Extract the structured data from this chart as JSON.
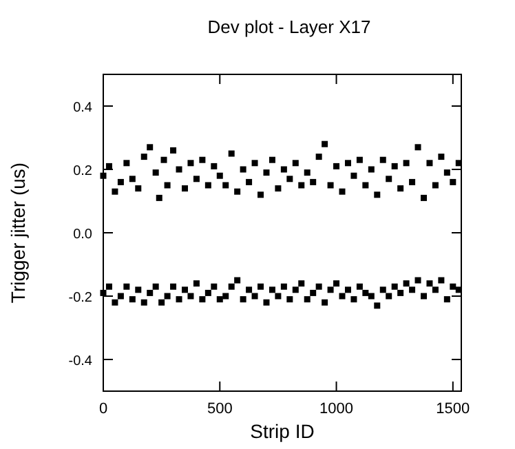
{
  "chart_data": {
    "type": "scatter",
    "title": "Dev plot - Layer X17",
    "xlabel": "Strip ID",
    "ylabel": "Trigger jitter (us)",
    "xlim": [
      0,
      1536
    ],
    "xticks": [
      0,
      500,
      1000,
      1500
    ],
    "ylim": [
      -0.5,
      0.5
    ],
    "yticks": [
      -0.4,
      -0.2,
      {
        "value": 0,
        "label": "0.0"
      },
      0.2,
      0.4
    ],
    "grid": false,
    "marker": "square",
    "series": [
      {
        "color": "#000000",
        "x": [
          0,
          25,
          50,
          75,
          100,
          125,
          150,
          175,
          200,
          225,
          240,
          260,
          275,
          300,
          325,
          350,
          375,
          400,
          425,
          450,
          475,
          500,
          525,
          550,
          575,
          600,
          625,
          650,
          675,
          700,
          725,
          750,
          775,
          800,
          825,
          850,
          875,
          900,
          925,
          950,
          975,
          1000,
          1025,
          1050,
          1075,
          1100,
          1125,
          1150,
          1175,
          1200,
          1225,
          1250,
          1275,
          1300,
          1325,
          1350,
          1375,
          1400,
          1425,
          1450,
          1475,
          1500,
          1525
        ],
        "values": [
          0.18,
          0.21,
          0.13,
          0.16,
          0.22,
          0.17,
          0.14,
          0.24,
          0.27,
          0.19,
          0.11,
          0.23,
          0.15,
          0.26,
          0.2,
          0.14,
          0.22,
          0.17,
          0.23,
          0.15,
          0.21,
          0.18,
          0.15,
          0.25,
          0.13,
          0.2,
          0.16,
          0.22,
          0.12,
          0.19,
          0.23,
          0.14,
          0.2,
          0.17,
          0.22,
          0.15,
          0.19,
          0.16,
          0.24,
          0.28,
          0.15,
          0.21,
          0.13,
          0.22,
          0.18,
          0.23,
          0.15,
          0.2,
          0.12,
          0.23,
          0.17,
          0.21,
          0.14,
          0.22,
          0.16,
          0.27,
          0.11,
          0.22,
          0.15,
          0.24,
          0.19,
          0.16,
          0.22
        ]
      },
      {
        "color": "#000000",
        "x": [
          0,
          25,
          50,
          75,
          100,
          125,
          150,
          175,
          200,
          225,
          250,
          275,
          300,
          325,
          350,
          375,
          400,
          425,
          450,
          475,
          500,
          525,
          550,
          575,
          600,
          625,
          650,
          675,
          700,
          725,
          750,
          775,
          800,
          825,
          850,
          875,
          900,
          925,
          950,
          975,
          1000,
          1025,
          1050,
          1075,
          1100,
          1125,
          1150,
          1175,
          1200,
          1225,
          1250,
          1275,
          1300,
          1325,
          1350,
          1375,
          1400,
          1425,
          1450,
          1475,
          1500,
          1525
        ],
        "values": [
          -0.19,
          -0.17,
          -0.22,
          -0.2,
          -0.17,
          -0.21,
          -0.18,
          -0.22,
          -0.19,
          -0.17,
          -0.22,
          -0.2,
          -0.17,
          -0.21,
          -0.18,
          -0.2,
          -0.16,
          -0.21,
          -0.19,
          -0.17,
          -0.21,
          -0.2,
          -0.17,
          -0.15,
          -0.21,
          -0.18,
          -0.2,
          -0.17,
          -0.22,
          -0.18,
          -0.2,
          -0.17,
          -0.21,
          -0.18,
          -0.16,
          -0.21,
          -0.19,
          -0.17,
          -0.22,
          -0.18,
          -0.16,
          -0.2,
          -0.18,
          -0.21,
          -0.17,
          -0.19,
          -0.2,
          -0.23,
          -0.18,
          -0.2,
          -0.17,
          -0.19,
          -0.16,
          -0.18,
          -0.15,
          -0.2,
          -0.16,
          -0.18,
          -0.15,
          -0.21,
          -0.17,
          -0.18
        ]
      }
    ]
  }
}
